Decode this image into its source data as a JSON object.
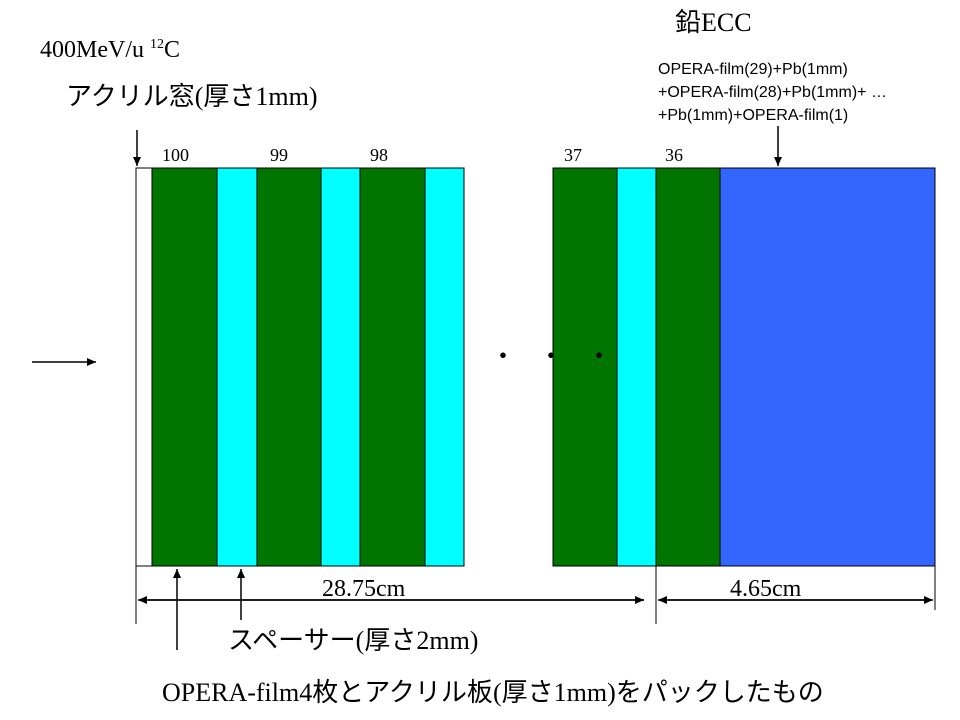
{
  "beam_label": {
    "text": "400MeV/u ",
    "sup": "12",
    "ion": "C"
  },
  "window_label": {
    "jp1": "アクリル窓",
    "p1": "(",
    "jp2": "厚さ",
    "p2": "1mm)"
  },
  "lead_ecc": {
    "title": {
      "jp": "鉛",
      "en": "ECC"
    },
    "lines": [
      "OPERA-film(29)+Pb(1mm)",
      "+OPERA-film(28)+Pb(1mm)+ …",
      "+Pb(1mm)+OPERA-film(1)"
    ]
  },
  "module_numbers": [
    "100",
    "99",
    "98",
    "37",
    "36"
  ],
  "ellipsis": "・・・",
  "dimensions": {
    "left": "28.75cm",
    "right": "4.65cm"
  },
  "spacer_label": {
    "jp1": "スペーサー",
    "p1": "(",
    "jp2": "厚さ",
    "p2": "2mm)"
  },
  "pack_label": {
    "p0": "OPERA-film4",
    "jp1": "枚とアクリル板",
    "p1": "(",
    "jp2": "厚さ",
    "p2": "1mm)",
    "jp3": "をパックしたもの"
  },
  "colors": {
    "film_pack": "#007600",
    "spacer": "#00ffff",
    "lead_ecc": "#3366ff"
  }
}
